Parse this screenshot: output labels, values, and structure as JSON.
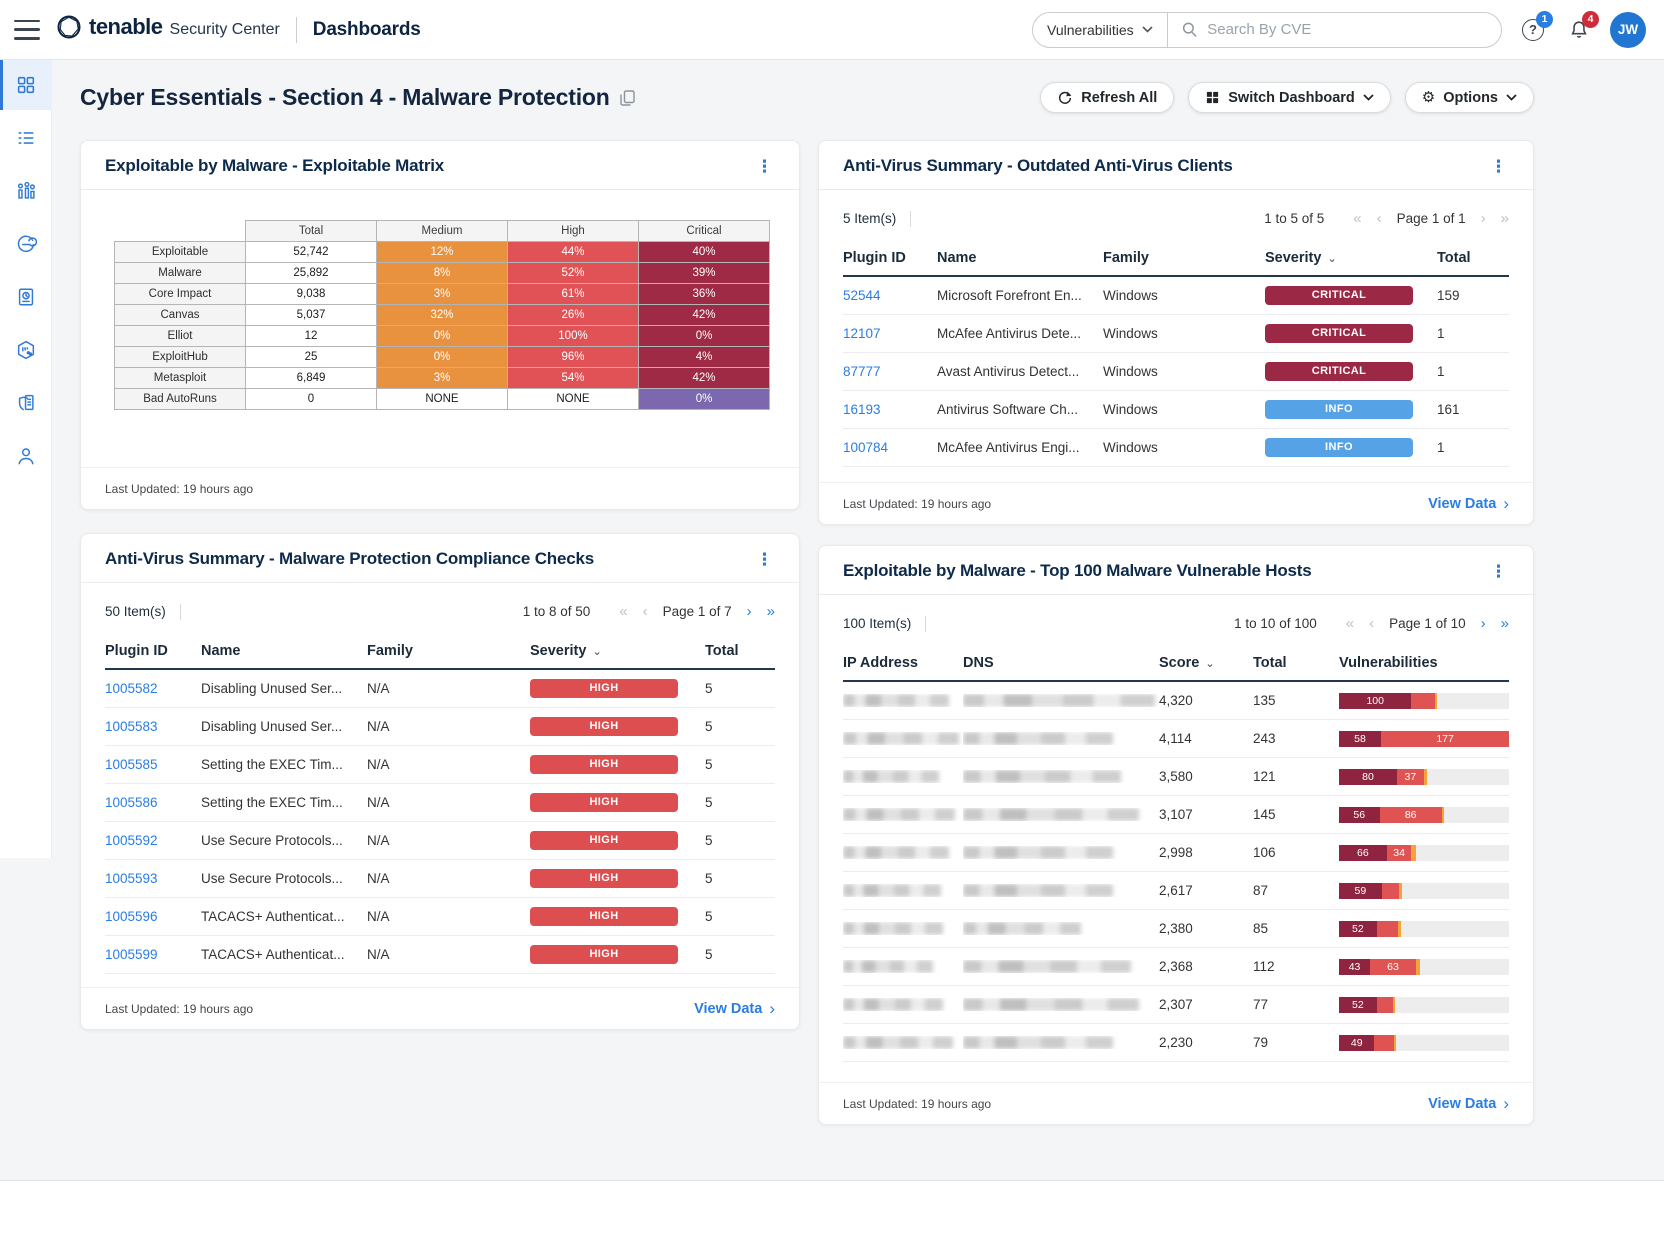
{
  "topbar": {
    "brand": "tenable",
    "brand_suffix": "Security Center",
    "app_title": "Dashboards",
    "scope_select": "Vulnerabilities",
    "search_placeholder": "Search By CVE",
    "help_badge": "1",
    "alerts_badge": "4",
    "avatar_initials": "JW"
  },
  "page": {
    "title": "Cyber Essentials - Section 4 - Malware Protection",
    "buttons": {
      "refresh": "Refresh All",
      "switch": "Switch Dashboard",
      "options": "Options"
    }
  },
  "colors": {
    "accent_blue": "#2f7ad6",
    "link_blue": "#2a7de1",
    "navy": "#0d2a4a",
    "severity": {
      "CRITICAL": "#9b2945",
      "HIGH": "#dc4e50",
      "INFO": "#55a2e6"
    },
    "matrix": {
      "medium": "#e8923f",
      "high": "#e05255",
      "critical": "#9e2a45",
      "purple": "#7b68ae",
      "white": "#ffffff"
    },
    "bar": {
      "dark": "#8f2440",
      "red": "#e05353",
      "orange": "#f2a33c"
    }
  },
  "sidebar": {
    "items": [
      "dashboards",
      "analysis",
      "assets",
      "scans",
      "reporting",
      "repositories",
      "policies",
      "users"
    ],
    "active": "dashboards"
  },
  "pager_glyphs": {
    "first": "«",
    "prev": "‹",
    "next": "›",
    "last": "»"
  },
  "panels": {
    "matrix": {
      "title": "Exploitable by Malware - Exploitable Matrix",
      "last_updated": "Last Updated: 19 hours ago",
      "chart_data": {
        "type": "table",
        "columns": [
          "",
          "Total",
          "Medium",
          "High",
          "Critical"
        ],
        "rows": [
          {
            "label": "Exploitable",
            "cells": [
              {
                "t": "52,742",
                "bg": "white"
              },
              {
                "t": "12%",
                "bg": "medium"
              },
              {
                "t": "44%",
                "bg": "high"
              },
              {
                "t": "40%",
                "bg": "critical"
              }
            ]
          },
          {
            "label": "Malware",
            "cells": [
              {
                "t": "25,892",
                "bg": "white"
              },
              {
                "t": "8%",
                "bg": "medium"
              },
              {
                "t": "52%",
                "bg": "high"
              },
              {
                "t": "39%",
                "bg": "critical"
              }
            ]
          },
          {
            "label": "Core Impact",
            "cells": [
              {
                "t": "9,038",
                "bg": "white"
              },
              {
                "t": "3%",
                "bg": "medium"
              },
              {
                "t": "61%",
                "bg": "high"
              },
              {
                "t": "36%",
                "bg": "critical"
              }
            ]
          },
          {
            "label": "Canvas",
            "cells": [
              {
                "t": "5,037",
                "bg": "white"
              },
              {
                "t": "32%",
                "bg": "medium"
              },
              {
                "t": "26%",
                "bg": "high"
              },
              {
                "t": "42%",
                "bg": "critical"
              }
            ]
          },
          {
            "label": "Elliot",
            "cells": [
              {
                "t": "12",
                "bg": "white"
              },
              {
                "t": "0%",
                "bg": "medium"
              },
              {
                "t": "100%",
                "bg": "high"
              },
              {
                "t": "0%",
                "bg": "critical"
              }
            ]
          },
          {
            "label": "ExploitHub",
            "cells": [
              {
                "t": "25",
                "bg": "white"
              },
              {
                "t": "0%",
                "bg": "medium"
              },
              {
                "t": "96%",
                "bg": "high"
              },
              {
                "t": "4%",
                "bg": "critical"
              }
            ]
          },
          {
            "label": "Metasploit",
            "cells": [
              {
                "t": "6,849",
                "bg": "white"
              },
              {
                "t": "3%",
                "bg": "medium"
              },
              {
                "t": "54%",
                "bg": "high"
              },
              {
                "t": "42%",
                "bg": "critical"
              }
            ]
          },
          {
            "label": "Bad AutoRuns",
            "cells": [
              {
                "t": "0",
                "bg": "white"
              },
              {
                "t": "NONE",
                "bg": "white"
              },
              {
                "t": "NONE",
                "bg": "white"
              },
              {
                "t": "0%",
                "bg": "purple"
              }
            ]
          }
        ]
      }
    },
    "av_clients": {
      "title": "Anti-Virus Summary - Outdated Anti-Virus Clients",
      "items_label": "5 Item(s)",
      "range_label": "1 to 5 of 5",
      "page_label": "Page 1 of 1",
      "next_enabled": false,
      "columns": [
        "Plugin ID",
        "Name",
        "Family",
        "Severity",
        "Total"
      ],
      "rows": [
        {
          "plugin_id": "52544",
          "name": "Microsoft Forefront En...",
          "family": "Windows",
          "severity": "CRITICAL",
          "total": "159"
        },
        {
          "plugin_id": "12107",
          "name": "McAfee Antivirus Dete...",
          "family": "Windows",
          "severity": "CRITICAL",
          "total": "1"
        },
        {
          "plugin_id": "87777",
          "name": "Avast Antivirus Detect...",
          "family": "Windows",
          "severity": "CRITICAL",
          "total": "1"
        },
        {
          "plugin_id": "16193",
          "name": "Antivirus Software Ch...",
          "family": "Windows",
          "severity": "INFO",
          "total": "161"
        },
        {
          "plugin_id": "100784",
          "name": "McAfee Antivirus Engi...",
          "family": "Windows",
          "severity": "INFO",
          "total": "1"
        }
      ],
      "last_updated": "Last Updated: 19 hours ago",
      "view_data": "View Data"
    },
    "compliance": {
      "title": "Anti-Virus Summary - Malware Protection Compliance Checks",
      "items_label": "50 Item(s)",
      "range_label": "1 to 8 of 50",
      "page_label": "Page 1 of 7",
      "next_enabled": true,
      "columns": [
        "Plugin ID",
        "Name",
        "Family",
        "Severity",
        "Total"
      ],
      "rows": [
        {
          "plugin_id": "1005582",
          "name": "Disabling Unused Ser...",
          "family": "N/A",
          "severity": "HIGH",
          "total": "5"
        },
        {
          "plugin_id": "1005583",
          "name": "Disabling Unused Ser...",
          "family": "N/A",
          "severity": "HIGH",
          "total": "5"
        },
        {
          "plugin_id": "1005585",
          "name": "Setting the EXEC Tim...",
          "family": "N/A",
          "severity": "HIGH",
          "total": "5"
        },
        {
          "plugin_id": "1005586",
          "name": "Setting the EXEC Tim...",
          "family": "N/A",
          "severity": "HIGH",
          "total": "5"
        },
        {
          "plugin_id": "1005592",
          "name": "Use Secure Protocols...",
          "family": "N/A",
          "severity": "HIGH",
          "total": "5"
        },
        {
          "plugin_id": "1005593",
          "name": "Use Secure Protocols...",
          "family": "N/A",
          "severity": "HIGH",
          "total": "5"
        },
        {
          "plugin_id": "1005596",
          "name": "TACACS+ Authenticat...",
          "family": "N/A",
          "severity": "HIGH",
          "total": "5"
        },
        {
          "plugin_id": "1005599",
          "name": "TACACS+ Authenticat...",
          "family": "N/A",
          "severity": "HIGH",
          "total": "5"
        }
      ],
      "last_updated": "Last Updated: 19 hours ago",
      "view_data": "View Data"
    },
    "hosts": {
      "title": "Exploitable by Malware - Top 100 Malware Vulnerable Hosts",
      "items_label": "100 Item(s)",
      "range_label": "1 to 10 of 100",
      "page_label": "Page 1 of 10",
      "next_enabled": true,
      "columns": [
        "IP Address",
        "DNS",
        "Score",
        "Total",
        "Vulnerabilities"
      ],
      "redacted_note": "IP Address and DNS values are blurred in the source image",
      "chart_data": {
        "type": "bar",
        "bar_scale_units": 243,
        "rows": [
          {
            "score": "4,320",
            "total": "135",
            "segments": [
              {
                "value": 100,
                "label": "100",
                "color": "dark"
              },
              {
                "value": 32,
                "label": "",
                "color": "red"
              },
              {
                "value": 3,
                "label": "",
                "color": "orange"
              }
            ]
          },
          {
            "score": "4,114",
            "total": "243",
            "segments": [
              {
                "value": 58,
                "label": "58",
                "color": "dark"
              },
              {
                "value": 177,
                "label": "177",
                "color": "red"
              },
              {
                "value": 8,
                "label": "",
                "color": "orange"
              }
            ]
          },
          {
            "score": "3,580",
            "total": "121",
            "segments": [
              {
                "value": 80,
                "label": "80",
                "color": "dark"
              },
              {
                "value": 37,
                "label": "37",
                "color": "red"
              },
              {
                "value": 4,
                "label": "",
                "color": "orange"
              }
            ]
          },
          {
            "score": "3,107",
            "total": "145",
            "segments": [
              {
                "value": 56,
                "label": "56",
                "color": "dark"
              },
              {
                "value": 86,
                "label": "86",
                "color": "red"
              },
              {
                "value": 3,
                "label": "",
                "color": "orange"
              }
            ]
          },
          {
            "score": "2,998",
            "total": "106",
            "segments": [
              {
                "value": 66,
                "label": "66",
                "color": "dark"
              },
              {
                "value": 34,
                "label": "34",
                "color": "red"
              },
              {
                "value": 6,
                "label": "",
                "color": "orange"
              }
            ]
          },
          {
            "score": "2,617",
            "total": "87",
            "segments": [
              {
                "value": 59,
                "label": "59",
                "color": "dark"
              },
              {
                "value": 24,
                "label": "",
                "color": "red"
              },
              {
                "value": 4,
                "label": "",
                "color": "orange"
              }
            ]
          },
          {
            "score": "2,380",
            "total": "85",
            "segments": [
              {
                "value": 52,
                "label": "52",
                "color": "dark"
              },
              {
                "value": 30,
                "label": "",
                "color": "red"
              },
              {
                "value": 3,
                "label": "",
                "color": "orange"
              }
            ]
          },
          {
            "score": "2,368",
            "total": "112",
            "segments": [
              {
                "value": 43,
                "label": "43",
                "color": "dark"
              },
              {
                "value": 63,
                "label": "63",
                "color": "red"
              },
              {
                "value": 6,
                "label": "",
                "color": "orange"
              }
            ]
          },
          {
            "score": "2,307",
            "total": "77",
            "segments": [
              {
                "value": 52,
                "label": "52",
                "color": "dark"
              },
              {
                "value": 22,
                "label": "",
                "color": "red"
              },
              {
                "value": 3,
                "label": "",
                "color": "orange"
              }
            ]
          },
          {
            "score": "2,230",
            "total": "79",
            "segments": [
              {
                "value": 49,
                "label": "49",
                "color": "dark"
              },
              {
                "value": 27,
                "label": "",
                "color": "red"
              },
              {
                "value": 3,
                "label": "",
                "color": "orange"
              }
            ]
          }
        ]
      },
      "last_updated": "Last Updated: 19 hours ago",
      "view_data": "View Data"
    }
  }
}
